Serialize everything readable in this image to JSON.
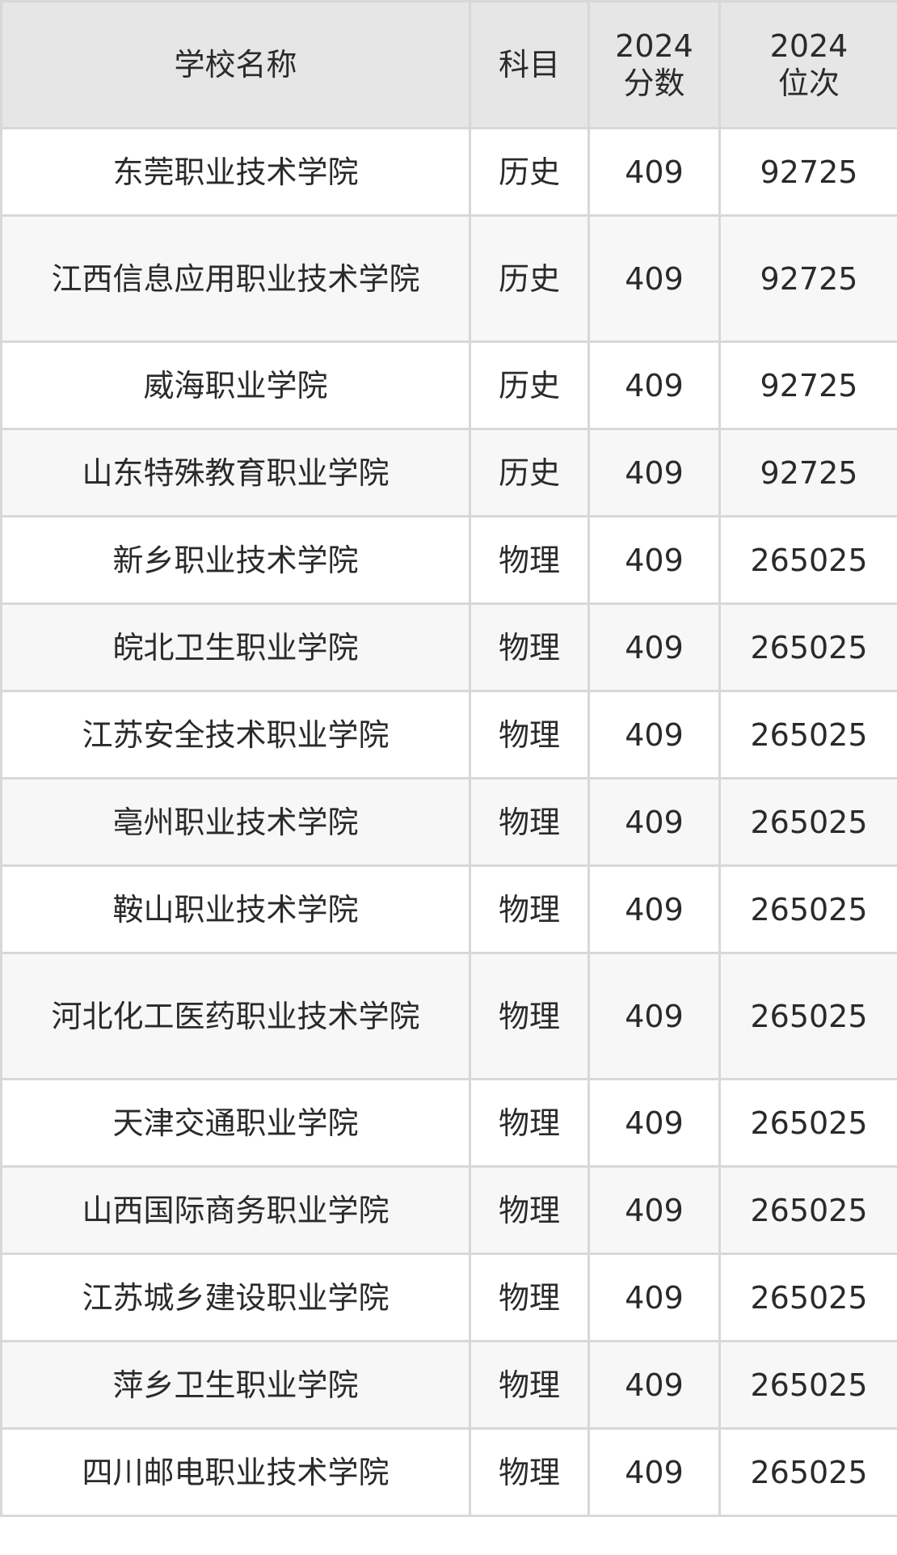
{
  "table": {
    "headers": [
      "学校名称",
      "科目",
      "2024\n分数",
      "2024\n位次"
    ],
    "header_lines": [
      [
        "学校名称"
      ],
      [
        "科目"
      ],
      [
        "2024",
        "分数"
      ],
      [
        "2024",
        "位次"
      ]
    ],
    "rows": [
      {
        "school": "东莞职业技术学院",
        "subject": "历史",
        "score": "409",
        "rank": "92725"
      },
      {
        "school": "江西信息应用职业技术学院",
        "subject": "历史",
        "score": "409",
        "rank": "92725"
      },
      {
        "school": "威海职业学院",
        "subject": "历史",
        "score": "409",
        "rank": "92725"
      },
      {
        "school": "山东特殊教育职业学院",
        "subject": "历史",
        "score": "409",
        "rank": "92725"
      },
      {
        "school": "新乡职业技术学院",
        "subject": "物理",
        "score": "409",
        "rank": "265025"
      },
      {
        "school": "皖北卫生职业学院",
        "subject": "物理",
        "score": "409",
        "rank": "265025"
      },
      {
        "school": "江苏安全技术职业学院",
        "subject": "物理",
        "score": "409",
        "rank": "265025"
      },
      {
        "school": "亳州职业技术学院",
        "subject": "物理",
        "score": "409",
        "rank": "265025"
      },
      {
        "school": "鞍山职业技术学院",
        "subject": "物理",
        "score": "409",
        "rank": "265025"
      },
      {
        "school": "河北化工医药职业技术学院",
        "subject": "物理",
        "score": "409",
        "rank": "265025"
      },
      {
        "school": "天津交通职业学院",
        "subject": "物理",
        "score": "409",
        "rank": "265025"
      },
      {
        "school": "山西国际商务职业学院",
        "subject": "物理",
        "score": "409",
        "rank": "265025"
      },
      {
        "school": "江苏城乡建设职业学院",
        "subject": "物理",
        "score": "409",
        "rank": "265025"
      },
      {
        "school": "萍乡卫生职业学院",
        "subject": "物理",
        "score": "409",
        "rank": "265025"
      },
      {
        "school": "四川邮电职业技术学院",
        "subject": "物理",
        "score": "409",
        "rank": "265025"
      }
    ]
  },
  "colors": {
    "header_bg": "#e6e6e6",
    "alt_row_bg": "#f7f7f7",
    "border": "#d8d8d8",
    "text": "#2a2a2a"
  }
}
